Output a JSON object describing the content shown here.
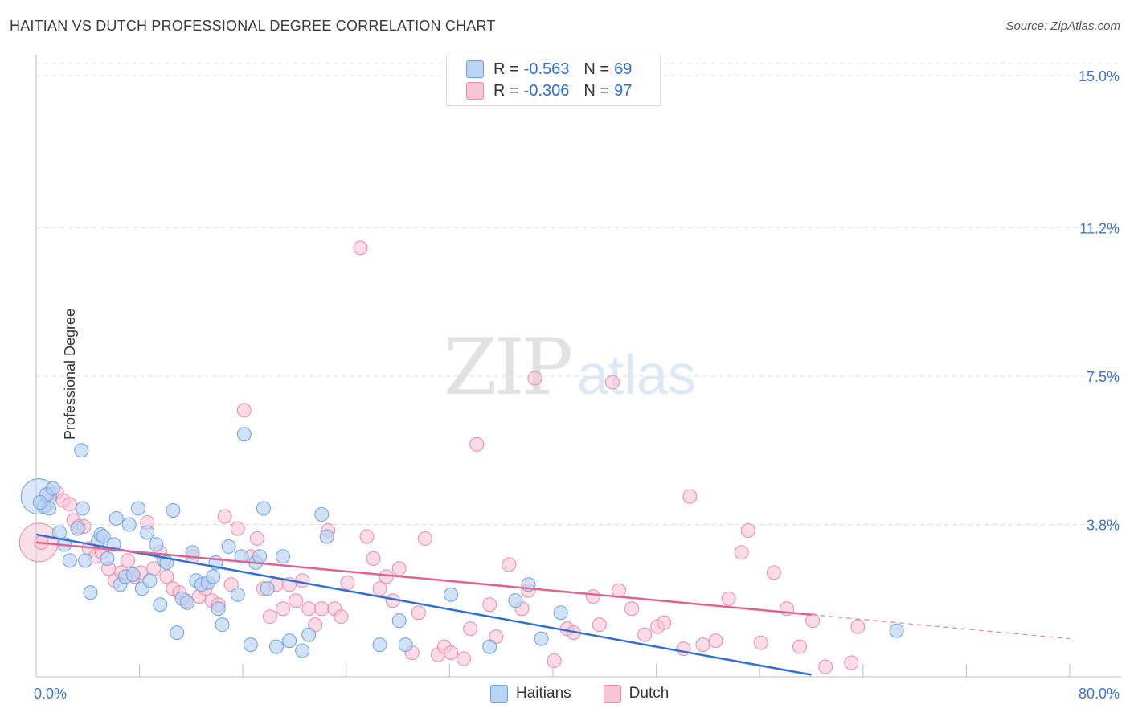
{
  "header": {
    "title": "HAITIAN VS DUTCH PROFESSIONAL DEGREE CORRELATION CHART",
    "source": "Source: ZipAtlas.com"
  },
  "watermark": {
    "zip": "ZIP",
    "atlas": "atlas"
  },
  "legend": {
    "r_label": "R =",
    "n_label": "N =",
    "haitians": {
      "r": "-0.563",
      "n": "69"
    },
    "dutch": {
      "r": "-0.306",
      "n": "97"
    }
  },
  "bottom_legend": {
    "haitians": "Haitians",
    "dutch": "Dutch"
  },
  "colors": {
    "haitians_fill": "#b9d3f3",
    "haitians_stroke": "#6d9fe3",
    "haitians_line": "#2f6fd6",
    "dutch_fill": "#f8c5d5",
    "dutch_stroke": "#e98aa8",
    "dutch_line": "#e0628f",
    "axis_text": "#3a73c9"
  },
  "chart_data": {
    "type": "scatter",
    "title": "HAITIAN VS DUTCH PROFESSIONAL DEGREE CORRELATION CHART",
    "xlabel": "",
    "ylabel": "Professional Degree",
    "xlim": [
      0,
      80
    ],
    "ylim": [
      0,
      15.6
    ],
    "x_tick_labels": [
      "0.0%",
      "80.0%"
    ],
    "y_ticks": [
      3.8,
      7.5,
      11.2,
      15.0
    ],
    "y_tick_labels": [
      "3.8%",
      "7.5%",
      "11.2%",
      "15.0%"
    ],
    "series": [
      {
        "name": "Haitians",
        "r": -0.563,
        "n": 69,
        "trend": {
          "x": [
            0,
            60
          ],
          "y": [
            3.55,
            0.05
          ]
        },
        "points": [
          [
            0.6,
            4.25
          ],
          [
            0.8,
            4.55
          ],
          [
            1.3,
            4.7
          ],
          [
            1.0,
            4.2
          ],
          [
            1.8,
            3.6
          ],
          [
            2.2,
            3.3
          ],
          [
            2.6,
            2.9
          ],
          [
            3.2,
            3.7
          ],
          [
            3.5,
            5.65
          ],
          [
            3.6,
            4.2
          ],
          [
            3.8,
            2.9
          ],
          [
            4.2,
            2.1
          ],
          [
            4.8,
            3.4
          ],
          [
            5.0,
            3.55
          ],
          [
            5.2,
            3.5
          ],
          [
            5.5,
            2.95
          ],
          [
            6.0,
            3.3
          ],
          [
            6.2,
            3.95
          ],
          [
            6.5,
            2.3
          ],
          [
            6.9,
            2.5
          ],
          [
            7.2,
            3.8
          ],
          [
            7.5,
            2.55
          ],
          [
            7.9,
            4.2
          ],
          [
            8.2,
            2.2
          ],
          [
            8.6,
            3.6
          ],
          [
            8.8,
            2.4
          ],
          [
            9.3,
            3.3
          ],
          [
            9.6,
            1.8
          ],
          [
            9.9,
            2.9
          ],
          [
            10.1,
            2.85
          ],
          [
            10.6,
            4.15
          ],
          [
            10.9,
            1.1
          ],
          [
            11.3,
            1.95
          ],
          [
            11.7,
            1.85
          ],
          [
            12.1,
            3.1
          ],
          [
            12.4,
            2.4
          ],
          [
            12.8,
            2.3
          ],
          [
            13.3,
            2.35
          ],
          [
            13.7,
            2.5
          ],
          [
            13.9,
            2.85
          ],
          [
            14.1,
            1.7
          ],
          [
            14.4,
            1.3
          ],
          [
            14.9,
            3.25
          ],
          [
            15.6,
            2.05
          ],
          [
            15.9,
            3.0
          ],
          [
            16.1,
            6.05
          ],
          [
            16.6,
            0.8
          ],
          [
            17.0,
            2.85
          ],
          [
            17.3,
            3.0
          ],
          [
            17.6,
            4.2
          ],
          [
            17.9,
            2.2
          ],
          [
            18.6,
            0.75
          ],
          [
            19.1,
            3.0
          ],
          [
            19.6,
            0.9
          ],
          [
            20.6,
            0.65
          ],
          [
            21.1,
            1.05
          ],
          [
            22.1,
            4.05
          ],
          [
            22.5,
            3.5
          ],
          [
            26.6,
            0.8
          ],
          [
            28.1,
            1.4
          ],
          [
            28.6,
            0.8
          ],
          [
            32.1,
            2.05
          ],
          [
            35.1,
            0.75
          ],
          [
            37.1,
            1.9
          ],
          [
            38.1,
            2.3
          ],
          [
            39.1,
            0.95
          ],
          [
            40.6,
            1.6
          ],
          [
            66.6,
            1.15
          ],
          [
            0.3,
            4.35
          ]
        ]
      },
      {
        "name": "Dutch",
        "r": -0.306,
        "n": 97,
        "trend": {
          "x": [
            0,
            60
          ],
          "y": [
            3.35,
            1.55
          ]
        },
        "trend_dashed": {
          "x": [
            60,
            80
          ],
          "y": [
            1.55,
            0.95
          ]
        },
        "points": [
          [
            0.4,
            3.35
          ],
          [
            1.0,
            4.55
          ],
          [
            1.6,
            4.6
          ],
          [
            2.1,
            4.4
          ],
          [
            2.6,
            4.3
          ],
          [
            2.9,
            3.9
          ],
          [
            3.3,
            3.75
          ],
          [
            3.7,
            3.75
          ],
          [
            4.1,
            3.2
          ],
          [
            4.6,
            3.0
          ],
          [
            5.1,
            3.1
          ],
          [
            5.6,
            2.7
          ],
          [
            6.1,
            2.4
          ],
          [
            6.6,
            2.6
          ],
          [
            7.1,
            2.9
          ],
          [
            7.6,
            2.5
          ],
          [
            8.1,
            2.6
          ],
          [
            8.6,
            3.85
          ],
          [
            9.1,
            2.7
          ],
          [
            9.6,
            3.1
          ],
          [
            10.1,
            2.5
          ],
          [
            10.6,
            2.2
          ],
          [
            11.1,
            2.1
          ],
          [
            11.6,
            1.9
          ],
          [
            12.1,
            3.0
          ],
          [
            12.6,
            2.0
          ],
          [
            13.1,
            2.2
          ],
          [
            13.6,
            1.9
          ],
          [
            14.1,
            1.8
          ],
          [
            14.6,
            4.0
          ],
          [
            15.1,
            2.3
          ],
          [
            15.6,
            3.7
          ],
          [
            16.1,
            6.65
          ],
          [
            16.6,
            3.0
          ],
          [
            17.1,
            3.45
          ],
          [
            17.6,
            2.2
          ],
          [
            18.1,
            1.5
          ],
          [
            18.6,
            2.3
          ],
          [
            19.1,
            1.7
          ],
          [
            19.6,
            2.3
          ],
          [
            20.1,
            1.9
          ],
          [
            20.6,
            2.4
          ],
          [
            21.1,
            1.7
          ],
          [
            21.6,
            1.3
          ],
          [
            22.1,
            1.7
          ],
          [
            22.6,
            3.65
          ],
          [
            23.1,
            1.7
          ],
          [
            23.6,
            1.5
          ],
          [
            24.1,
            2.35
          ],
          [
            25.1,
            10.7
          ],
          [
            25.6,
            3.5
          ],
          [
            26.1,
            2.95
          ],
          [
            26.6,
            2.2
          ],
          [
            27.1,
            2.5
          ],
          [
            27.6,
            1.9
          ],
          [
            28.1,
            2.7
          ],
          [
            29.1,
            0.6
          ],
          [
            29.6,
            1.6
          ],
          [
            30.1,
            3.45
          ],
          [
            31.1,
            0.55
          ],
          [
            31.6,
            0.75
          ],
          [
            32.1,
            0.6
          ],
          [
            33.1,
            0.45
          ],
          [
            33.6,
            1.2
          ],
          [
            34.1,
            5.8
          ],
          [
            35.1,
            1.8
          ],
          [
            35.6,
            1.0
          ],
          [
            36.6,
            2.8
          ],
          [
            37.6,
            1.7
          ],
          [
            38.1,
            2.15
          ],
          [
            38.6,
            7.45
          ],
          [
            40.1,
            0.4
          ],
          [
            41.1,
            1.2
          ],
          [
            41.6,
            1.1
          ],
          [
            43.1,
            2.0
          ],
          [
            43.6,
            1.3
          ],
          [
            44.6,
            7.35
          ],
          [
            45.1,
            2.15
          ],
          [
            46.1,
            1.7
          ],
          [
            47.1,
            1.05
          ],
          [
            48.1,
            1.25
          ],
          [
            48.6,
            1.35
          ],
          [
            50.1,
            0.7
          ],
          [
            50.6,
            4.5
          ],
          [
            51.6,
            0.8
          ],
          [
            52.6,
            0.9
          ],
          [
            53.6,
            1.95
          ],
          [
            54.6,
            3.1
          ],
          [
            55.1,
            3.65
          ],
          [
            56.1,
            0.85
          ],
          [
            57.1,
            2.6
          ],
          [
            58.1,
            1.7
          ],
          [
            59.1,
            0.75
          ],
          [
            60.1,
            1.4
          ],
          [
            61.1,
            0.25
          ],
          [
            63.1,
            0.35
          ],
          [
            63.6,
            1.25
          ]
        ]
      }
    ]
  }
}
